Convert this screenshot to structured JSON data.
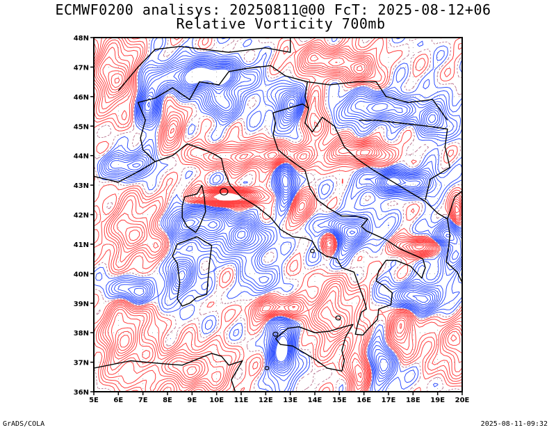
{
  "title": {
    "line1": "ECMWF0200 analisys: 20250811@00 FcT: 2025-08-12+06",
    "line2": "Relative Vorticity 700mb"
  },
  "footer": {
    "left": "GrADS/COLA",
    "right": "2025-08-11-09:32"
  },
  "map": {
    "lon_range": [
      5,
      20
    ],
    "lat_range": [
      36,
      48
    ],
    "lon_ticks": [
      "5E",
      "6E",
      "7E",
      "8E",
      "9E",
      "10E",
      "11E",
      "12E",
      "13E",
      "14E",
      "15E",
      "16E",
      "17E",
      "18E",
      "19E",
      "20E"
    ],
    "lat_ticks": [
      "36N",
      "37N",
      "38N",
      "39N",
      "40N",
      "41N",
      "42N",
      "43N",
      "44N",
      "45N",
      "46N",
      "47N",
      "48N"
    ],
    "grid_on": true
  },
  "colors": {
    "positive_contour": "#3050ff",
    "negative_contour": "#ff4040",
    "coastline": "#000000",
    "grid": "#909090"
  }
}
